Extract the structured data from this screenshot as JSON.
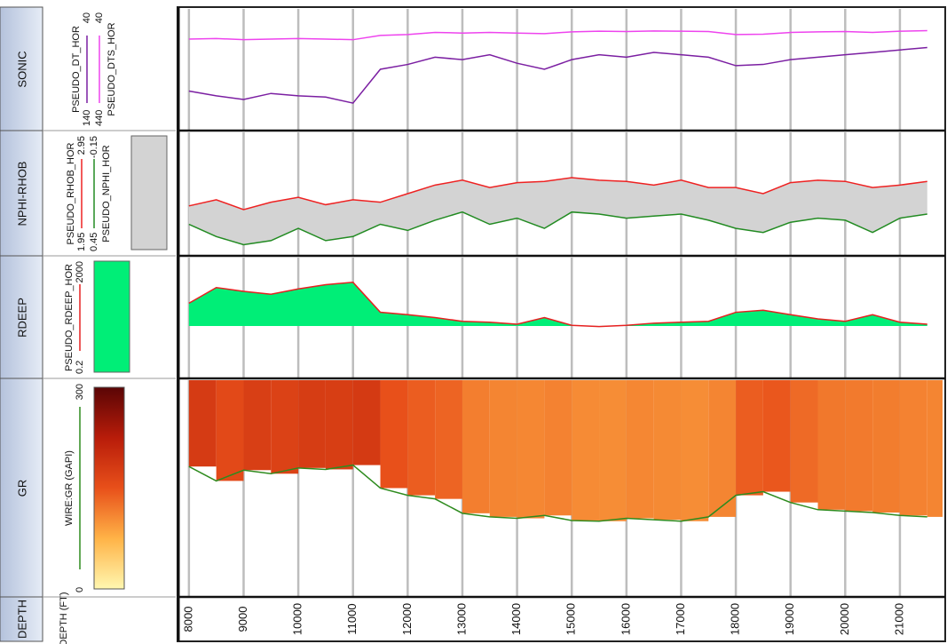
{
  "chart_data": {
    "type": "well-log",
    "x_label": "DEPTH (FT)",
    "depth_header": "DEPTH",
    "xlim": [
      7840,
      21780
    ],
    "xticks": [
      8000,
      9000,
      10000,
      11000,
      12000,
      13000,
      14000,
      15000,
      16000,
      17000,
      18000,
      19000,
      20000,
      21000
    ],
    "grid": true,
    "depth": [
      8000,
      8500,
      9000,
      9500,
      10000,
      10500,
      11000,
      11500,
      12000,
      12500,
      13000,
      13500,
      14000,
      14500,
      15000,
      15500,
      16000,
      16500,
      17000,
      17500,
      18000,
      18500,
      19000,
      19500,
      20000,
      20500,
      21000,
      21500
    ],
    "tracks": [
      {
        "name": "SONIC",
        "curves": [
          {
            "name": "PSEUDO_DT_HOR",
            "color": "#7b1fa2",
            "ylim": [
              140,
              40
            ],
            "values": [
              108,
              112,
              115,
              110,
              112,
              113,
              118,
              90,
              86,
              80,
              82,
              78,
              85,
              90,
              82,
              78,
              80,
              76,
              78,
              80,
              87,
              86,
              82,
              80,
              78,
              76,
              74,
              72
            ]
          },
          {
            "name": "PSEUDO_DTS_HOR",
            "color": "#ee44ee",
            "ylim": [
              440,
              40
            ],
            "values": [
              140,
              138,
              142,
              140,
              138,
              140,
              142,
              128,
              125,
              118,
              120,
              118,
              120,
              122,
              116,
              114,
              115,
              113,
              114,
              115,
              125,
              124,
              118,
              116,
              115,
              118,
              114,
              112
            ]
          }
        ]
      },
      {
        "name": "NPHI-RHOB",
        "fill": "#d3d3d3",
        "curves": [
          {
            "name": "PSEUDO_RHOB_HOR",
            "color": "#ee2222",
            "ylim": [
              1.95,
              2.95
            ],
            "values": [
              2.35,
              2.4,
              2.32,
              2.38,
              2.42,
              2.36,
              2.4,
              2.38,
              2.45,
              2.52,
              2.56,
              2.5,
              2.54,
              2.55,
              2.58,
              2.56,
              2.55,
              2.52,
              2.56,
              2.5,
              2.5,
              2.45,
              2.54,
              2.56,
              2.55,
              2.5,
              2.52,
              2.55
            ]
          },
          {
            "name": "PSEUDO_NPHI_HOR",
            "color": "#228b22",
            "ylim": [
              0.45,
              -0.15
            ],
            "values": [
              0.3,
              0.36,
              0.4,
              0.38,
              0.32,
              0.38,
              0.36,
              0.3,
              0.33,
              0.28,
              0.24,
              0.3,
              0.27,
              0.32,
              0.24,
              0.25,
              0.27,
              0.26,
              0.25,
              0.28,
              0.32,
              0.34,
              0.29,
              0.27,
              0.28,
              0.34,
              0.27,
              0.25
            ]
          }
        ]
      },
      {
        "name": "RDEEP",
        "curves": [
          {
            "name": "PSEUDO_RDEEP_HOR",
            "color": "#e62020",
            "fill": "#00ee77",
            "log": true,
            "ylim": [
              0.2,
              2000
            ],
            "values": [
              60,
              200,
              150,
              120,
              180,
              250,
              300,
              30,
              25,
              20,
              15,
              14,
              12,
              20,
              11,
              10,
              11,
              13,
              14,
              15,
              30,
              35,
              25,
              18,
              15,
              25,
              14,
              12
            ]
          }
        ]
      },
      {
        "name": "GR",
        "curves": [
          {
            "name": "WIRE:GR (GAPI)",
            "color": "#2e8b1e",
            "ylim": [
              0,
              300
            ],
            "colormap": [
              "#fff7b0",
              "#ffb347",
              "#e8501a",
              "#b81c0a",
              "#5a0505"
            ],
            "values": [
              180,
              160,
              175,
              170,
              178,
              176,
              182,
              150,
              140,
              135,
              115,
              110,
              108,
              112,
              105,
              104,
              108,
              106,
              104,
              110,
              140,
              145,
              130,
              120,
              118,
              116,
              112,
              110
            ]
          }
        ]
      }
    ]
  }
}
